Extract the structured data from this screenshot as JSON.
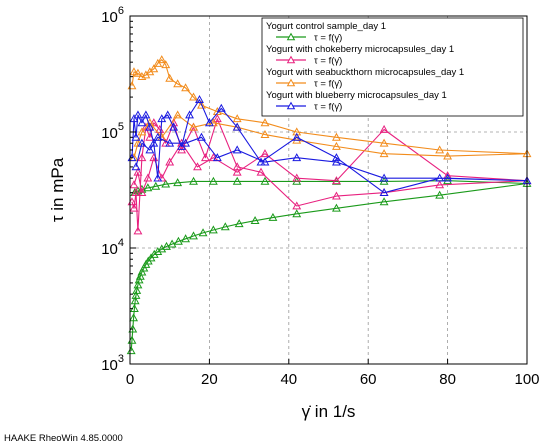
{
  "chart_data": {
    "type": "line",
    "xlabel": "γ̇ in 1/s",
    "ylabel": "τ in mPa",
    "xlim": [
      0,
      100
    ],
    "ylim": [
      1000,
      1000000
    ],
    "y_scale": "log",
    "x_ticks": [
      "0",
      "20",
      "40",
      "60",
      "80",
      "100"
    ],
    "y_tick_base": "10",
    "y_tick_exponents": [
      "3",
      "4",
      "5",
      "6"
    ],
    "grid": "dashed",
    "legend_position": "top-right",
    "footer": "HAAKE RheoWin 4.85.0000",
    "series": [
      {
        "name": "Yogurt control sample_day 1",
        "formula": "τ = f(γ̇)",
        "color": "#1a9a1a",
        "x": [
          0.3,
          0.5,
          0.7,
          0.9,
          1.1,
          1.3,
          1.5,
          1.7,
          2.0,
          2.3,
          2.6,
          3.0,
          3.5,
          4.0,
          4.6,
          5.3,
          6.1,
          7.0,
          8.0,
          9.2,
          10.6,
          12.2,
          14.0,
          16.0,
          18.4,
          21.0,
          24.0,
          27.5,
          31.5,
          36.0,
          42.0,
          52.0,
          64.0,
          78.0,
          100.0,
          80.0,
          64.0,
          52.0,
          42.0,
          34.0,
          27.0,
          21.0,
          16.0,
          12.0,
          9.0,
          6.5,
          4.5,
          3.0,
          2.0,
          1.2
        ],
        "y": [
          1300,
          1600,
          2000,
          2500,
          3000,
          3500,
          3900,
          4300,
          4800,
          5300,
          5700,
          6200,
          6700,
          7200,
          7700,
          8200,
          8800,
          9300,
          9800,
          10300,
          10800,
          11400,
          12000,
          12700,
          13500,
          14300,
          15200,
          16200,
          17200,
          18300,
          19700,
          22000,
          25000,
          28500,
          36000,
          38000,
          37500,
          37500,
          37500,
          37500,
          37500,
          37500,
          37500,
          36500,
          35500,
          34000,
          33000,
          32000,
          31000,
          30000
        ]
      },
      {
        "name": "Yogurt with chokeberry microcapsules_day 1",
        "formula": "τ = f(γ̇)",
        "color": "#e8217f",
        "x": [
          0.5,
          1.0,
          1.5,
          2.0,
          3.0,
          4.0,
          5.0,
          6.0,
          7.5,
          9.0,
          11.0,
          13.0,
          16.0,
          19.0,
          22.0,
          27.0,
          33.0,
          42.0,
          52.0,
          64.0,
          78.0,
          100.0,
          80.0,
          64.0,
          52.0,
          42.0,
          34.0,
          27.0,
          21.0,
          17.0,
          13.0,
          10.0,
          8.0,
          6.0,
          4.5,
          3.0,
          2.0,
          1.0
        ],
        "y": [
          25000,
          22000,
          30000,
          14000,
          60000,
          110000,
          90000,
          120000,
          105000,
          80000,
          120000,
          70000,
          110000,
          60000,
          130000,
          50000,
          45000,
          23000,
          28000,
          30000,
          35000,
          38000,
          42000,
          105000,
          38000,
          40000,
          65000,
          45000,
          60000,
          50000,
          80000,
          55000,
          40000,
          60000,
          40000,
          30000,
          45000,
          35000
        ]
      },
      {
        "name": "Yogurt with seabuckthorn microcapsules_day 1",
        "formula": "τ = f(γ̇)",
        "color": "#f28c1c",
        "x": [
          0.5,
          1.0,
          2.0,
          3.0,
          4.0,
          5.0,
          6.0,
          7.0,
          8.0,
          9.0,
          10.0,
          12.0,
          14.0,
          16.0,
          18.0,
          22.0,
          27.0,
          34.0,
          42.0,
          52.0,
          64.0,
          78.0,
          100.0,
          80.0,
          64.0,
          52.0,
          42.0,
          34.0,
          27.0,
          21.0,
          16.0,
          12.0,
          8.0,
          5.0,
          3.0,
          2.0,
          1.0
        ],
        "y": [
          250000,
          330000,
          320000,
          300000,
          310000,
          330000,
          350000,
          390000,
          420000,
          380000,
          290000,
          260000,
          240000,
          200000,
          170000,
          150000,
          130000,
          120000,
          100000,
          90000,
          80000,
          70000,
          65000,
          62000,
          65000,
          75000,
          85000,
          95000,
          110000,
          120000,
          110000,
          140000,
          90000,
          120000,
          100000,
          80000,
          60000
        ]
      },
      {
        "name": "Yogurt with blueberry microcapsules_day 1",
        "formula": "τ = f(γ̇)",
        "color": "#1a1ae0",
        "x": [
          0.5,
          1.0,
          1.5,
          2.0,
          3.0,
          4.0,
          5.0,
          6.0,
          7.0,
          8.0,
          9.5,
          11.0,
          13.0,
          15.0,
          17.5,
          20.0,
          23.0,
          27.0,
          33.0,
          42.0,
          52.0,
          64.0,
          78.0,
          100.0,
          80.0,
          64.0,
          52.0,
          42.0,
          34.0,
          27.0,
          22.0,
          18.0,
          14.0,
          10.0,
          7.0,
          5.0,
          3.0,
          1.5
        ],
        "y": [
          60000,
          130000,
          90000,
          140000,
          120000,
          140000,
          110000,
          80000,
          40000,
          130000,
          140000,
          110000,
          75000,
          140000,
          190000,
          120000,
          160000,
          110000,
          55000,
          90000,
          60000,
          30000,
          40000,
          38000,
          40000,
          40000,
          55000,
          60000,
          55000,
          70000,
          60000,
          90000,
          80000,
          80000,
          90000,
          70000,
          80000,
          50000
        ]
      }
    ]
  }
}
